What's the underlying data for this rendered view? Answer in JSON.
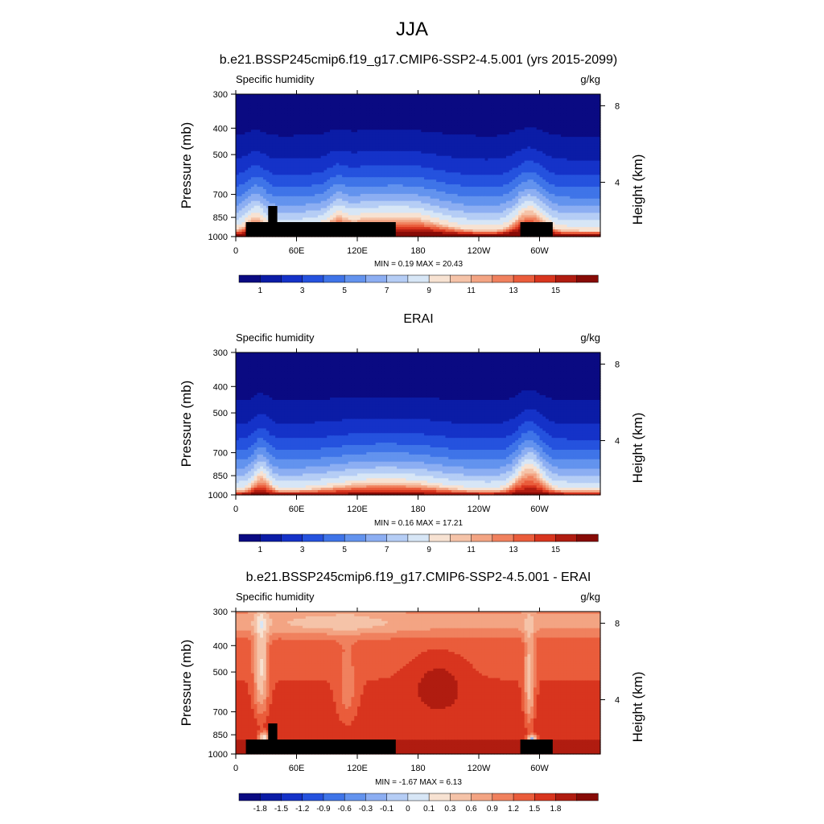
{
  "figure_title": "JJA",
  "chart_data": [
    {
      "type": "heatmap",
      "title": "b.e21.BSSP245cmip6.f19_g17.CMIP6-SSP2-4.5.001 (yrs 2015-2099)",
      "variable": "Specific humidity",
      "units": "g/kg",
      "ylabel": "Pressure (mb)",
      "ylabel_right": "Height (km)",
      "x_ticks": [
        "0",
        "60E",
        "120E",
        "180",
        "120W",
        "60W"
      ],
      "y_ticks": [
        "300",
        "400",
        "500",
        "700",
        "850",
        "1000"
      ],
      "height_ticks": [
        "8",
        "4"
      ],
      "ylim": [
        1000,
        300
      ],
      "stats": "MIN =   0.19  MAX =  20.43",
      "min": 0.19,
      "max": 20.43,
      "colorbar_labels": [
        "1",
        "3",
        "5",
        "7",
        "9",
        "11",
        "13",
        "15"
      ],
      "colorbar_type": "sequential",
      "field": "model"
    },
    {
      "type": "heatmap",
      "title": "ERAI",
      "variable": "Specific humidity",
      "units": "g/kg",
      "ylabel": "Pressure (mb)",
      "ylabel_right": "Height (km)",
      "x_ticks": [
        "0",
        "60E",
        "120E",
        "180",
        "120W",
        "60W"
      ],
      "y_ticks": [
        "300",
        "400",
        "500",
        "700",
        "850",
        "1000"
      ],
      "height_ticks": [
        "8",
        "4"
      ],
      "ylim": [
        1000,
        300
      ],
      "stats": "MIN =   0.16  MAX =  17.21",
      "min": 0.16,
      "max": 17.21,
      "colorbar_labels": [
        "1",
        "3",
        "5",
        "7",
        "9",
        "11",
        "13",
        "15"
      ],
      "colorbar_type": "sequential",
      "field": "obs"
    },
    {
      "type": "heatmap",
      "title": "b.e21.BSSP245cmip6.f19_g17.CMIP6-SSP2-4.5.001 - ERAI",
      "variable": "Specific humidity",
      "units": "g/kg",
      "ylabel": "Pressure (mb)",
      "ylabel_right": "Height (km)",
      "x_ticks": [
        "0",
        "60E",
        "120E",
        "180",
        "120W",
        "60W"
      ],
      "y_ticks": [
        "300",
        "400",
        "500",
        "700",
        "850",
        "1000"
      ],
      "height_ticks": [
        "8",
        "4"
      ],
      "ylim": [
        1000,
        300
      ],
      "stats": "MIN =  -1.67  MAX =   6.13",
      "min": -1.67,
      "max": 6.13,
      "colorbar_labels": [
        "-1.8",
        "-1.5",
        "-1.2",
        "-0.9",
        "-0.6",
        "-0.3",
        "-0.1",
        "0",
        "0.1",
        "0.3",
        "0.6",
        "0.9",
        "1.2",
        "1.5",
        "1.8"
      ],
      "colorbar_type": "diverging",
      "field": "diff"
    }
  ],
  "palettes": {
    "sequential": [
      "#0a0a82",
      "#0b1ca6",
      "#1532c8",
      "#2552de",
      "#3f74e8",
      "#6393ee",
      "#8caef2",
      "#b5cdf5",
      "#d7e6f6",
      "#f7e2d2",
      "#f5c3a8",
      "#f3a483",
      "#f0815e",
      "#ea5c3b",
      "#d8351e",
      "#b01c10",
      "#870b06"
    ],
    "diverging": [
      "#0a0a82",
      "#0b1ca6",
      "#1532c8",
      "#2552de",
      "#3f74e8",
      "#6393ee",
      "#8caef2",
      "#b5cdf5",
      "#d7e6f6",
      "#f7e2d2",
      "#f5c3a8",
      "#f3a483",
      "#f0815e",
      "#ea5c3b",
      "#d8351e",
      "#b01c10",
      "#870b06"
    ]
  }
}
